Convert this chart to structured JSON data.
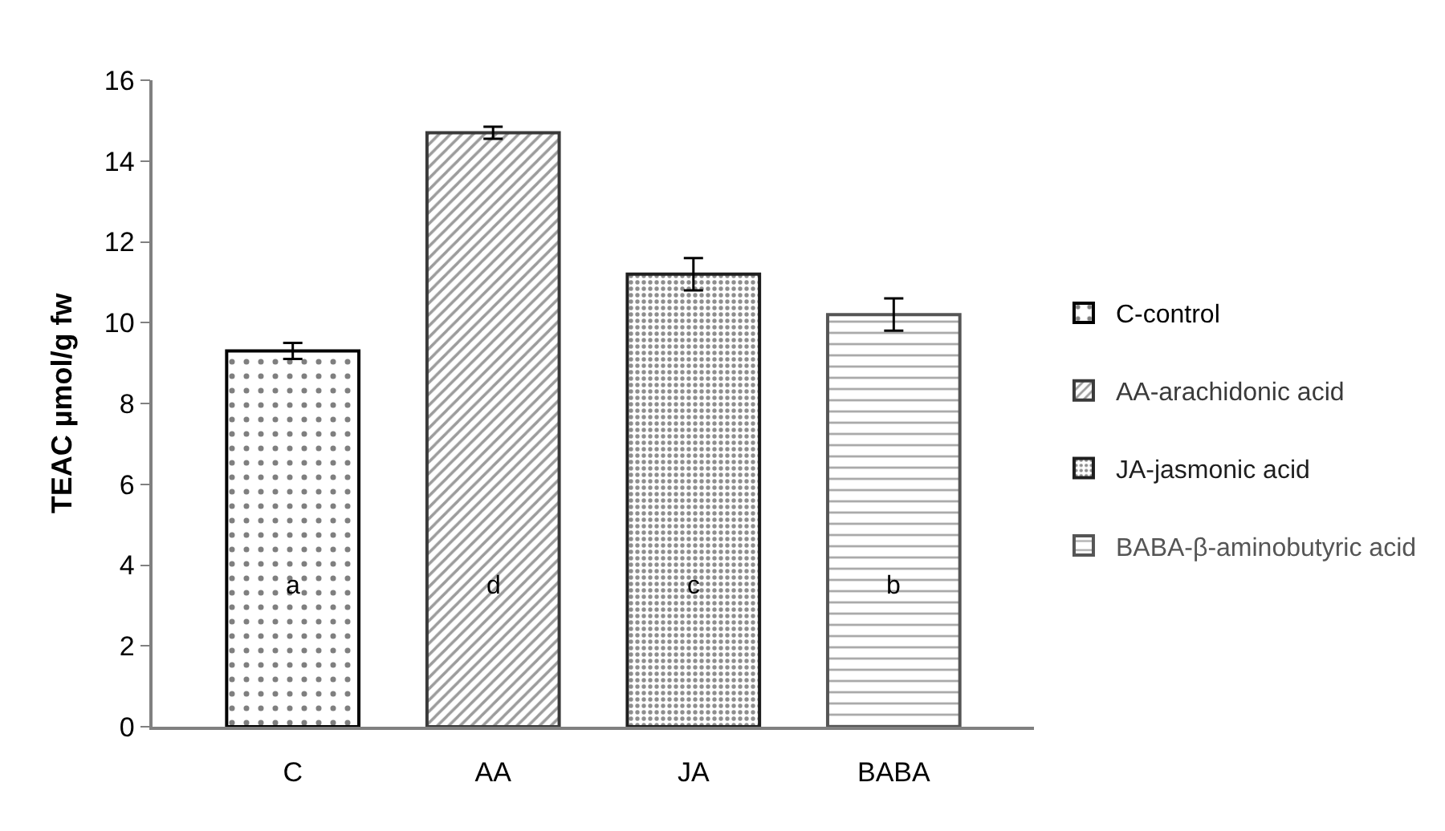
{
  "chart_data": {
    "type": "bar",
    "ylabel": "TEAC µmol/g fw",
    "categories": [
      "C",
      "AA",
      "JA",
      "BABA"
    ],
    "series": [
      {
        "name": "C-control",
        "color": "#000000",
        "values": [
          9.3,
          null,
          null,
          null
        ],
        "errors": [
          0.2,
          null,
          null,
          null
        ]
      },
      {
        "name": "AA-arachidonic acid",
        "color": "#3a3a3a",
        "values": [
          null,
          14.7,
          null,
          null
        ],
        "errors": [
          null,
          0.15,
          null,
          null
        ]
      },
      {
        "name": "JA-jasmonic acid",
        "color": "#1e1e1e",
        "values": [
          null,
          null,
          11.2,
          null
        ],
        "errors": [
          null,
          null,
          0.4,
          null
        ]
      },
      {
        "name": "BABA-β-aminobutyric acid",
        "color": "#555555",
        "values": [
          null,
          null,
          null,
          10.2
        ],
        "errors": [
          null,
          null,
          null,
          0.4
        ]
      }
    ],
    "ylim": [
      0,
      16
    ],
    "yticks": [
      0,
      2,
      4,
      6,
      8,
      10,
      12,
      14,
      16
    ],
    "legend": "right",
    "annotations": [
      "a",
      "d",
      "c",
      "b"
    ]
  }
}
